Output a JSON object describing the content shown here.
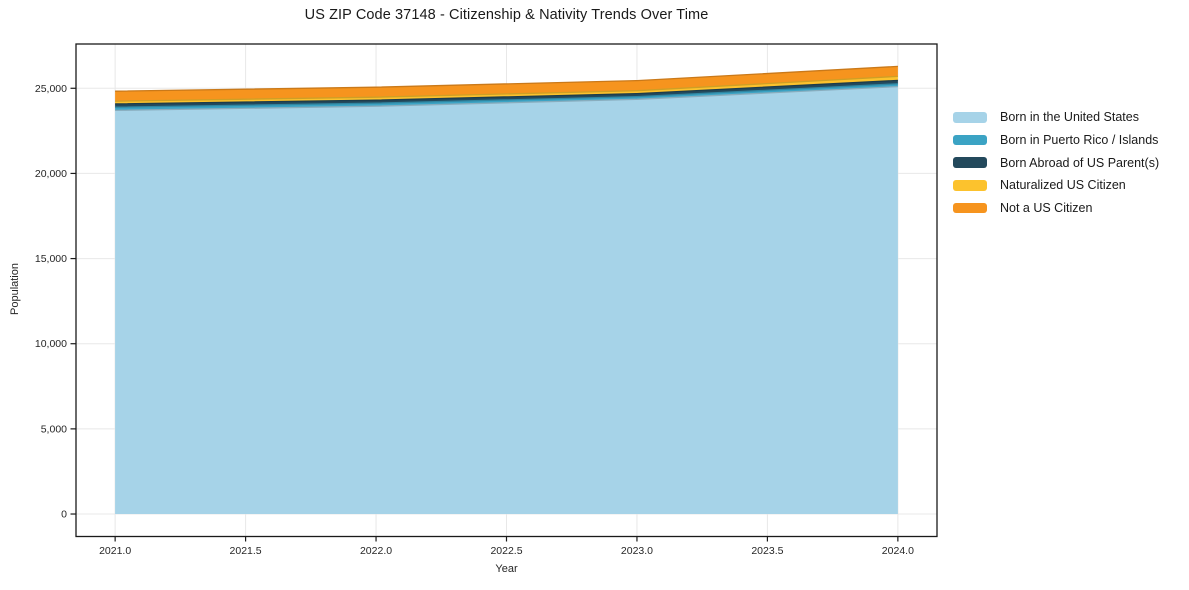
{
  "chart_data": {
    "type": "area",
    "stacked": true,
    "title": "US ZIP Code 37148 - Citizenship & Nativity Trends Over Time",
    "xlabel": "Year",
    "ylabel": "Population",
    "x": [
      2021,
      2022,
      2023,
      2024
    ],
    "series": [
      {
        "name": "Born in the United States",
        "color": "#A6D3E8",
        "values": [
          23700,
          23950,
          24350,
          25100
        ]
      },
      {
        "name": "Born in Puerto Rico / Islands",
        "color": "#3BA3C4",
        "values": [
          190,
          175,
          160,
          160
        ]
      },
      {
        "name": "Born Abroad of US Parent(s)",
        "color": "#23495C",
        "values": [
          190,
          175,
          175,
          200
        ]
      },
      {
        "name": "Naturalized US Citizen",
        "color": "#FCC22D",
        "values": [
          160,
          175,
          175,
          235
        ]
      },
      {
        "name": "Not a US Citizen",
        "color": "#F6941E",
        "values": [
          590,
          590,
          590,
          590
        ]
      }
    ],
    "x_ticks": {
      "values": [
        2021,
        2021.5,
        2022,
        2022.5,
        2023,
        2023.5,
        2024
      ],
      "labels": [
        "2021.0",
        "2021.5",
        "2022.0",
        "2022.5",
        "2023.0",
        "2023.5",
        "2024.0"
      ]
    },
    "y_ticks": {
      "values": [
        0,
        5000,
        10000,
        15000,
        20000,
        25000
      ],
      "labels": [
        "0",
        "5,000",
        "10,000",
        "15,000",
        "20,000",
        "25,000"
      ]
    },
    "xlim": [
      2020.85,
      2024.15
    ],
    "ylim": [
      -1320,
      27600
    ],
    "grid": true,
    "legend_position": "right",
    "colors": {
      "grid": "#e8e8e8",
      "spine": "#1a1a1a",
      "tick_text": "#262626"
    }
  }
}
